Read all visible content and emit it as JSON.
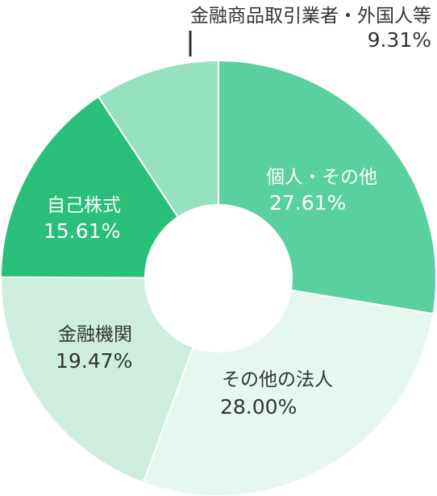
{
  "chart_data": {
    "type": "pie",
    "donut": true,
    "title": "",
    "start_angle_deg": 0,
    "direction": "clockwise",
    "slices": [
      {
        "label": "個人・その他",
        "value": 27.61,
        "display": "27.61%",
        "color": "#5acf9f",
        "text_color": "#ffffff"
      },
      {
        "label": "その他の法人",
        "value": 28.0,
        "display": "28.00%",
        "color": "#e6f7ef",
        "text_color": "#333333"
      },
      {
        "label": "金融機関",
        "value": 19.47,
        "display": "19.47%",
        "color": "#cdeede",
        "text_color": "#333333"
      },
      {
        "label": "自己株式",
        "value": 15.61,
        "display": "15.61%",
        "color": "#2abf78",
        "text_color": "#ffffff"
      },
      {
        "label": "金融商品取引業者・外国人等",
        "value": 9.31,
        "display": "9.31%",
        "color": "#95e1c0",
        "text_color": "#333333"
      }
    ]
  }
}
